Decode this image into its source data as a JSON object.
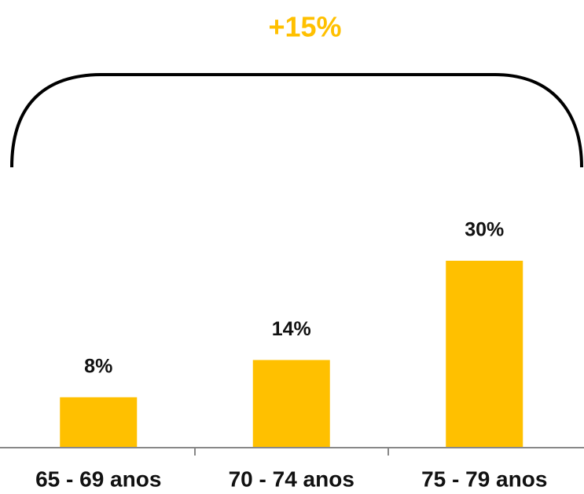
{
  "chart_data": {
    "type": "bar",
    "annotation": "+15%",
    "categories": [
      "65 - 69 anos",
      "70 - 74 anos",
      "75 - 79 anos"
    ],
    "values": [
      8,
      14,
      30
    ],
    "value_labels": [
      "8%",
      "14%",
      "30%"
    ],
    "color": "#ffc000",
    "annotation_color": "#ffc000"
  }
}
